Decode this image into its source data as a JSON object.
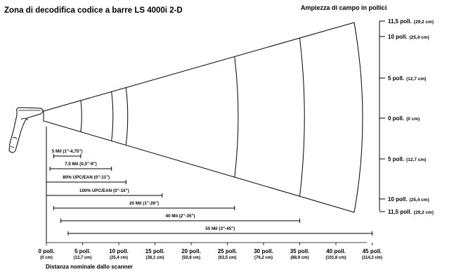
{
  "title": "Zona di decodifica codice a barre LS 4000i 2-D",
  "width_axis_title": "Ampiezza di campo in pollici",
  "distance_axis_title": "Distanza nominale dallo scanner",
  "width_labels": [
    {
      "main": "11,5 poll.",
      "sub": "(29,2 cm)"
    },
    {
      "main": "10 poll.",
      "sub": "(25,4 cm)"
    },
    {
      "main": "5 poll.",
      "sub": "(12,7 cm)"
    },
    {
      "main": "0 poll.",
      "sub": "(0 cm)"
    },
    {
      "main": "5 poll.",
      "sub": "(12,7 cm)"
    },
    {
      "main": "10 poll.",
      "sub": "(25,4 cm)"
    },
    {
      "main": "11,5 poll.",
      "sub": "(29,2 cm)"
    }
  ],
  "distance_labels": [
    {
      "main": "0 poll.",
      "sub": "(0 cm)"
    },
    {
      "main": "5 poll.",
      "sub": "(12,7 cm)"
    },
    {
      "main": "10 poll.",
      "sub": "(25,4 cm)"
    },
    {
      "main": "15 poll.",
      "sub": "(38,1 cm)"
    },
    {
      "main": "20 poll.",
      "sub": "(50,8 cm)"
    },
    {
      "main": "25 poll.",
      "sub": "(63,5 cm)"
    },
    {
      "main": "30 poll.",
      "sub": "(76,2 cm)"
    },
    {
      "main": "35 poll.",
      "sub": "(88,9 cm)"
    },
    {
      "main": "40 poll.",
      "sub": "(101,6 cm)"
    },
    {
      "main": "45 poll.",
      "sub": "(114,3 cm)"
    }
  ],
  "ranges": [
    {
      "label": "5 Mil (1\"-4,75\")",
      "from": 1,
      "to": 4.75
    },
    {
      "label": "7,5 Mil (0,5\"-9\")",
      "from": 0.5,
      "to": 9
    },
    {
      "label": "80% UPC/EAN (0\"-11\")",
      "from": 0,
      "to": 11
    },
    {
      "label": "100% UPC/EAN (0\"-16\")",
      "from": 0,
      "to": 16
    },
    {
      "label": "20 Mil (1\"-26\")",
      "from": 1,
      "to": 26
    },
    {
      "label": "40 Mil (2\"-35\")",
      "from": 2,
      "to": 35
    },
    {
      "label": "55 Mil (3\"-45\")",
      "from": 3,
      "to": 45
    }
  ],
  "zone_arcs_at": [
    4.75,
    9,
    11,
    26,
    35
  ]
}
